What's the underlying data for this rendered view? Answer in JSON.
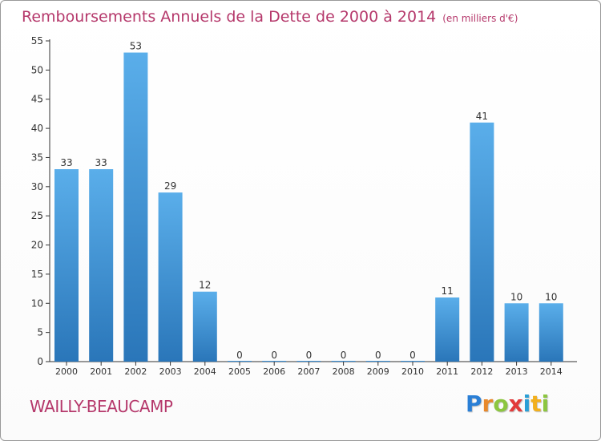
{
  "chart_data": {
    "type": "bar",
    "title": "Remboursements Annuels de la Dette de 2000 à 2014",
    "unit": "(en milliers d'€)",
    "categories": [
      "2000",
      "2001",
      "2002",
      "2003",
      "2004",
      "2005",
      "2006",
      "2007",
      "2008",
      "2009",
      "2010",
      "2011",
      "2012",
      "2013",
      "2014"
    ],
    "values": [
      33,
      33,
      53,
      29,
      12,
      0,
      0,
      0,
      0,
      0,
      0,
      11,
      41,
      10,
      10
    ],
    "ylim": [
      0,
      55
    ],
    "yticks": [
      0,
      5,
      10,
      15,
      20,
      25,
      30,
      35,
      40,
      45,
      50,
      55
    ],
    "grid": false,
    "bar_color": "#3f92d8",
    "bar_color_light": "#5aaeea",
    "bar_color_dark": "#2a76b9"
  },
  "footer": {
    "commune": "WAILLY-BEAUCAMP",
    "logo": [
      "P",
      "r",
      "o",
      "x",
      "i",
      "t",
      "i"
    ]
  },
  "colors": {
    "title": "#b5386b",
    "axis": "#333333",
    "border": "#999999"
  }
}
